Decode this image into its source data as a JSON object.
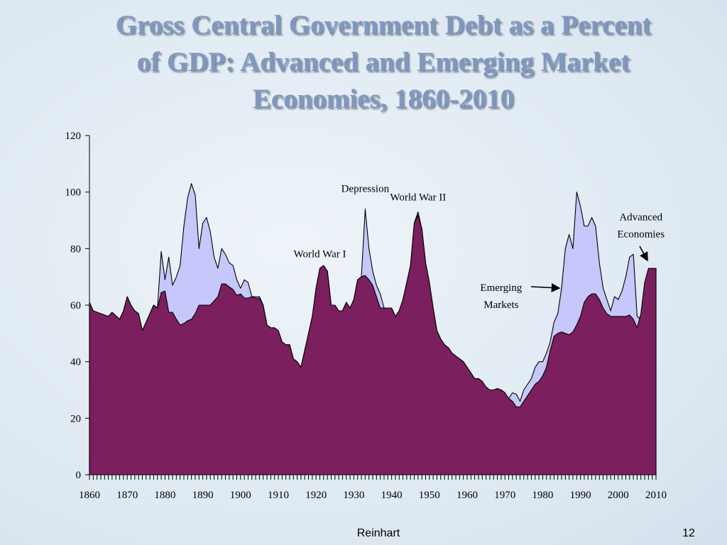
{
  "slide": {
    "title_lines": [
      "Gross Central Government Debt as a Percent",
      "of GDP: Advanced and Emerging Market",
      "Economies, 1860-2010"
    ],
    "footer_author": "Reinhart",
    "page_number": "12"
  },
  "colors": {
    "title": "#7f98c0",
    "advanced_fill": "#7b1f5e",
    "emerging_fill": "#c6c7fb",
    "outline": "#000000"
  },
  "chart_data": {
    "type": "area",
    "xlim": [
      1860,
      2010
    ],
    "ylim": [
      0,
      120
    ],
    "yticks": [
      0,
      20,
      40,
      60,
      80,
      100,
      120
    ],
    "xticks": [
      1860,
      1870,
      1880,
      1890,
      1900,
      1910,
      1920,
      1930,
      1940,
      1950,
      1960,
      1970,
      1980,
      1990,
      2000,
      2010
    ],
    "grid": false,
    "series": [
      {
        "name": "Emerging Markets",
        "points": [
          [
            1860,
            61
          ],
          [
            1861,
            58
          ],
          [
            1863,
            57
          ],
          [
            1865,
            56
          ],
          [
            1866,
            57.5
          ],
          [
            1868,
            55
          ],
          [
            1869,
            58
          ],
          [
            1870,
            63
          ],
          [
            1871,
            60
          ],
          [
            1872,
            58
          ],
          [
            1873,
            57
          ],
          [
            1874,
            51
          ],
          [
            1875,
            54
          ],
          [
            1876,
            57
          ],
          [
            1877,
            60
          ],
          [
            1878,
            59
          ],
          [
            1879,
            79
          ],
          [
            1880,
            69
          ],
          [
            1881,
            77
          ],
          [
            1882,
            67
          ],
          [
            1883,
            70
          ],
          [
            1884,
            74
          ],
          [
            1885,
            88
          ],
          [
            1886,
            98
          ],
          [
            1887,
            103
          ],
          [
            1888,
            99
          ],
          [
            1889,
            80
          ],
          [
            1890,
            89
          ],
          [
            1891,
            91
          ],
          [
            1892,
            86
          ],
          [
            1893,
            77
          ],
          [
            1894,
            73
          ],
          [
            1895,
            80
          ],
          [
            1896,
            78
          ],
          [
            1897,
            75
          ],
          [
            1898,
            74
          ],
          [
            1899,
            69
          ],
          [
            1900,
            66
          ],
          [
            1901,
            69
          ],
          [
            1902,
            68
          ],
          [
            1903,
            63
          ],
          [
            1904,
            63
          ],
          [
            1905,
            63
          ],
          [
            1906,
            60
          ],
          [
            1907,
            53
          ],
          [
            1908,
            52
          ],
          [
            1909,
            52
          ],
          [
            1910,
            51
          ],
          [
            1911,
            47
          ],
          [
            1912,
            46
          ],
          [
            1913,
            46
          ],
          [
            1914,
            41
          ],
          [
            1915,
            40
          ],
          [
            1916,
            38
          ],
          [
            1917,
            44
          ],
          [
            1918,
            50
          ],
          [
            1919,
            56
          ],
          [
            1920,
            66
          ],
          [
            1921,
            73
          ],
          [
            1922,
            74
          ],
          [
            1923,
            72
          ],
          [
            1924,
            60
          ],
          [
            1925,
            60
          ],
          [
            1926,
            58
          ],
          [
            1927,
            58
          ],
          [
            1928,
            61
          ],
          [
            1929,
            59
          ],
          [
            1930,
            62
          ],
          [
            1931,
            69
          ],
          [
            1932,
            70
          ],
          [
            1933,
            94
          ],
          [
            1934,
            80
          ],
          [
            1935,
            72
          ],
          [
            1936,
            67
          ],
          [
            1937,
            64
          ],
          [
            1938,
            59
          ],
          [
            1939,
            59
          ],
          [
            1940,
            59
          ],
          [
            1941,
            56
          ],
          [
            1942,
            58
          ],
          [
            1943,
            62
          ],
          [
            1944,
            68
          ],
          [
            1945,
            74
          ],
          [
            1946,
            89
          ],
          [
            1947,
            93
          ],
          [
            1948,
            87
          ],
          [
            1949,
            75
          ],
          [
            1950,
            68
          ],
          [
            1951,
            59
          ],
          [
            1952,
            51
          ],
          [
            1953,
            48
          ],
          [
            1954,
            46
          ],
          [
            1955,
            45
          ],
          [
            1956,
            43
          ],
          [
            1957,
            42
          ],
          [
            1958,
            41
          ],
          [
            1959,
            40
          ],
          [
            1960,
            38
          ],
          [
            1961,
            36
          ],
          [
            1962,
            34
          ],
          [
            1963,
            34
          ],
          [
            1964,
            33
          ],
          [
            1965,
            31
          ],
          [
            1966,
            30
          ],
          [
            1967,
            30
          ],
          [
            1968,
            30.5
          ],
          [
            1969,
            30
          ],
          [
            1970,
            29
          ],
          [
            1971,
            27
          ],
          [
            1972,
            29
          ],
          [
            1973,
            28.5
          ],
          [
            1974,
            26
          ],
          [
            1975,
            30
          ],
          [
            1976,
            32
          ],
          [
            1977,
            34
          ],
          [
            1978,
            38
          ],
          [
            1979,
            40
          ],
          [
            1980,
            40
          ],
          [
            1981,
            43
          ],
          [
            1982,
            47
          ],
          [
            1983,
            54
          ],
          [
            1984,
            57
          ],
          [
            1985,
            66
          ],
          [
            1986,
            80
          ],
          [
            1987,
            85
          ],
          [
            1988,
            80
          ],
          [
            1989,
            100
          ],
          [
            1990,
            95
          ],
          [
            1991,
            88
          ],
          [
            1992,
            88
          ],
          [
            1993,
            91
          ],
          [
            1994,
            88
          ],
          [
            1995,
            75
          ],
          [
            1996,
            66
          ],
          [
            1997,
            62
          ],
          [
            1998,
            58
          ],
          [
            1999,
            63
          ],
          [
            2000,
            62
          ],
          [
            2001,
            65
          ],
          [
            2002,
            70
          ],
          [
            2003,
            77
          ],
          [
            2004,
            78
          ],
          [
            2005,
            56
          ],
          [
            2006,
            55
          ],
          [
            2007,
            53
          ],
          [
            2008,
            60
          ],
          [
            2009,
            68
          ],
          [
            2010,
            73
          ]
        ]
      },
      {
        "name": "Advanced Economies",
        "points": [
          [
            1860,
            61
          ],
          [
            1861,
            58
          ],
          [
            1863,
            57
          ],
          [
            1865,
            56
          ],
          [
            1866,
            57.5
          ],
          [
            1868,
            55
          ],
          [
            1869,
            58
          ],
          [
            1870,
            63
          ],
          [
            1871,
            60
          ],
          [
            1872,
            58
          ],
          [
            1873,
            57
          ],
          [
            1874,
            51
          ],
          [
            1875,
            54
          ],
          [
            1876,
            57
          ],
          [
            1877,
            60
          ],
          [
            1878,
            59
          ],
          [
            1879,
            64.5
          ],
          [
            1880,
            65
          ],
          [
            1881,
            57.5
          ],
          [
            1882,
            57.5
          ],
          [
            1883,
            55
          ],
          [
            1884,
            53
          ],
          [
            1885,
            53.5
          ],
          [
            1886,
            54.5
          ],
          [
            1887,
            55
          ],
          [
            1888,
            57
          ],
          [
            1889,
            60
          ],
          [
            1890,
            60
          ],
          [
            1891,
            60
          ],
          [
            1892,
            60
          ],
          [
            1893,
            61.5
          ],
          [
            1894,
            63
          ],
          [
            1895,
            67.5
          ],
          [
            1896,
            67.5
          ],
          [
            1897,
            66.5
          ],
          [
            1898,
            65.5
          ],
          [
            1899,
            63.5
          ],
          [
            1900,
            64
          ],
          [
            1901,
            62.5
          ],
          [
            1902,
            62.5
          ],
          [
            1903,
            63
          ],
          [
            1904,
            62.5
          ],
          [
            1905,
            62.5
          ],
          [
            1906,
            60
          ],
          [
            1907,
            53
          ],
          [
            1908,
            52
          ],
          [
            1909,
            52
          ],
          [
            1910,
            51
          ],
          [
            1911,
            47
          ],
          [
            1912,
            46
          ],
          [
            1913,
            46
          ],
          [
            1914,
            41
          ],
          [
            1915,
            40
          ],
          [
            1916,
            38
          ],
          [
            1917,
            44
          ],
          [
            1918,
            50
          ],
          [
            1919,
            56
          ],
          [
            1920,
            66
          ],
          [
            1921,
            73
          ],
          [
            1922,
            74
          ],
          [
            1923,
            72
          ],
          [
            1924,
            60
          ],
          [
            1925,
            60
          ],
          [
            1926,
            58
          ],
          [
            1927,
            58
          ],
          [
            1928,
            61
          ],
          [
            1929,
            59
          ],
          [
            1930,
            62
          ],
          [
            1931,
            69
          ],
          [
            1932,
            70
          ],
          [
            1933,
            70.5
          ],
          [
            1934,
            69
          ],
          [
            1935,
            67
          ],
          [
            1936,
            63
          ],
          [
            1937,
            59
          ],
          [
            1938,
            59
          ],
          [
            1939,
            59
          ],
          [
            1940,
            59
          ],
          [
            1941,
            56
          ],
          [
            1942,
            58
          ],
          [
            1943,
            62
          ],
          [
            1944,
            68
          ],
          [
            1945,
            74
          ],
          [
            1946,
            89
          ],
          [
            1947,
            92
          ],
          [
            1948,
            87
          ],
          [
            1949,
            75
          ],
          [
            1950,
            68
          ],
          [
            1951,
            59
          ],
          [
            1952,
            51
          ],
          [
            1953,
            48
          ],
          [
            1954,
            46
          ],
          [
            1955,
            45
          ],
          [
            1956,
            43
          ],
          [
            1957,
            42
          ],
          [
            1958,
            41
          ],
          [
            1959,
            40
          ],
          [
            1960,
            38
          ],
          [
            1961,
            36
          ],
          [
            1962,
            34
          ],
          [
            1963,
            34
          ],
          [
            1964,
            33
          ],
          [
            1965,
            31
          ],
          [
            1966,
            30
          ],
          [
            1967,
            30
          ],
          [
            1968,
            30.5
          ],
          [
            1969,
            30
          ],
          [
            1970,
            29
          ],
          [
            1971,
            27
          ],
          [
            1972,
            26
          ],
          [
            1973,
            24
          ],
          [
            1974,
            24
          ],
          [
            1975,
            26
          ],
          [
            1976,
            28
          ],
          [
            1977,
            30
          ],
          [
            1978,
            32
          ],
          [
            1979,
            33
          ],
          [
            1980,
            35
          ],
          [
            1981,
            38
          ],
          [
            1982,
            44
          ],
          [
            1983,
            49
          ],
          [
            1984,
            50
          ],
          [
            1985,
            50.5
          ],
          [
            1986,
            50
          ],
          [
            1987,
            49.5
          ],
          [
            1988,
            50.5
          ],
          [
            1989,
            53
          ],
          [
            1990,
            56
          ],
          [
            1991,
            61
          ],
          [
            1992,
            63
          ],
          [
            1993,
            64
          ],
          [
            1994,
            64
          ],
          [
            1995,
            62
          ],
          [
            1996,
            59
          ],
          [
            1997,
            57
          ],
          [
            1998,
            56
          ],
          [
            1999,
            56
          ],
          [
            2000,
            56
          ],
          [
            2001,
            56
          ],
          [
            2002,
            56
          ],
          [
            2003,
            56.5
          ],
          [
            2004,
            55
          ],
          [
            2005,
            52
          ],
          [
            2006,
            57
          ],
          [
            2007,
            68
          ],
          [
            2008,
            73
          ],
          [
            2009,
            73
          ],
          [
            2010,
            73
          ]
        ]
      }
    ],
    "annotations": [
      {
        "text": "World War I",
        "year": 1921,
        "value": 77
      },
      {
        "text": "Depression",
        "year": 1933,
        "value": 100
      },
      {
        "text": "World War II",
        "year": 1947,
        "value": 97
      },
      {
        "text": "Emerging",
        "year": 1969,
        "value": 65
      },
      {
        "text": "Markets",
        "year": 1969,
        "value": 59
      },
      {
        "text": "Advanced",
        "year": 2006,
        "value": 90
      },
      {
        "text": "Economies",
        "year": 2006,
        "value": 84
      }
    ]
  }
}
